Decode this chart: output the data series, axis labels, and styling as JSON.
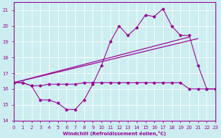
{
  "xlabel": "Windchill (Refroidissement éolien,°C)",
  "xlim": [
    0,
    23
  ],
  "ylim": [
    14,
    21.5
  ],
  "yticks": [
    14,
    15,
    16,
    17,
    18,
    19,
    20,
    21
  ],
  "xticks": [
    0,
    1,
    2,
    3,
    4,
    5,
    6,
    7,
    8,
    9,
    10,
    11,
    12,
    13,
    14,
    15,
    16,
    17,
    18,
    19,
    20,
    21,
    22,
    23
  ],
  "bg_color": "#cdeef0",
  "line_color": "#990099",
  "grid_color": "#ffffff",
  "hours": [
    0,
    1,
    2,
    3,
    4,
    5,
    6,
    7,
    8,
    9,
    10,
    11,
    12,
    13,
    14,
    15,
    16,
    17,
    18,
    19,
    20,
    21,
    22,
    23
  ],
  "temp_y": [
    16.4,
    16.4,
    16.2,
    16.2,
    16.3,
    16.3,
    16.3,
    16.3,
    16.4,
    16.4,
    16.4,
    16.4,
    16.4,
    16.4,
    16.4,
    16.4,
    16.4,
    16.4,
    16.4,
    16.4,
    16.0,
    16.0,
    16.0,
    16.0
  ],
  "windchill_y": [
    16.4,
    16.4,
    16.2,
    15.3,
    15.3,
    15.1,
    14.7,
    14.7,
    15.3,
    16.3,
    17.5,
    19.0,
    20.0,
    19.4,
    19.9,
    20.7,
    20.6,
    21.1,
    20.0,
    19.4,
    19.4,
    17.5,
    16.0,
    16.0
  ],
  "trend1_x": [
    0,
    20
  ],
  "trend1_y": [
    16.4,
    19.3
  ],
  "trend2_x": [
    0,
    21
  ],
  "trend2_y": [
    16.4,
    19.2
  ]
}
